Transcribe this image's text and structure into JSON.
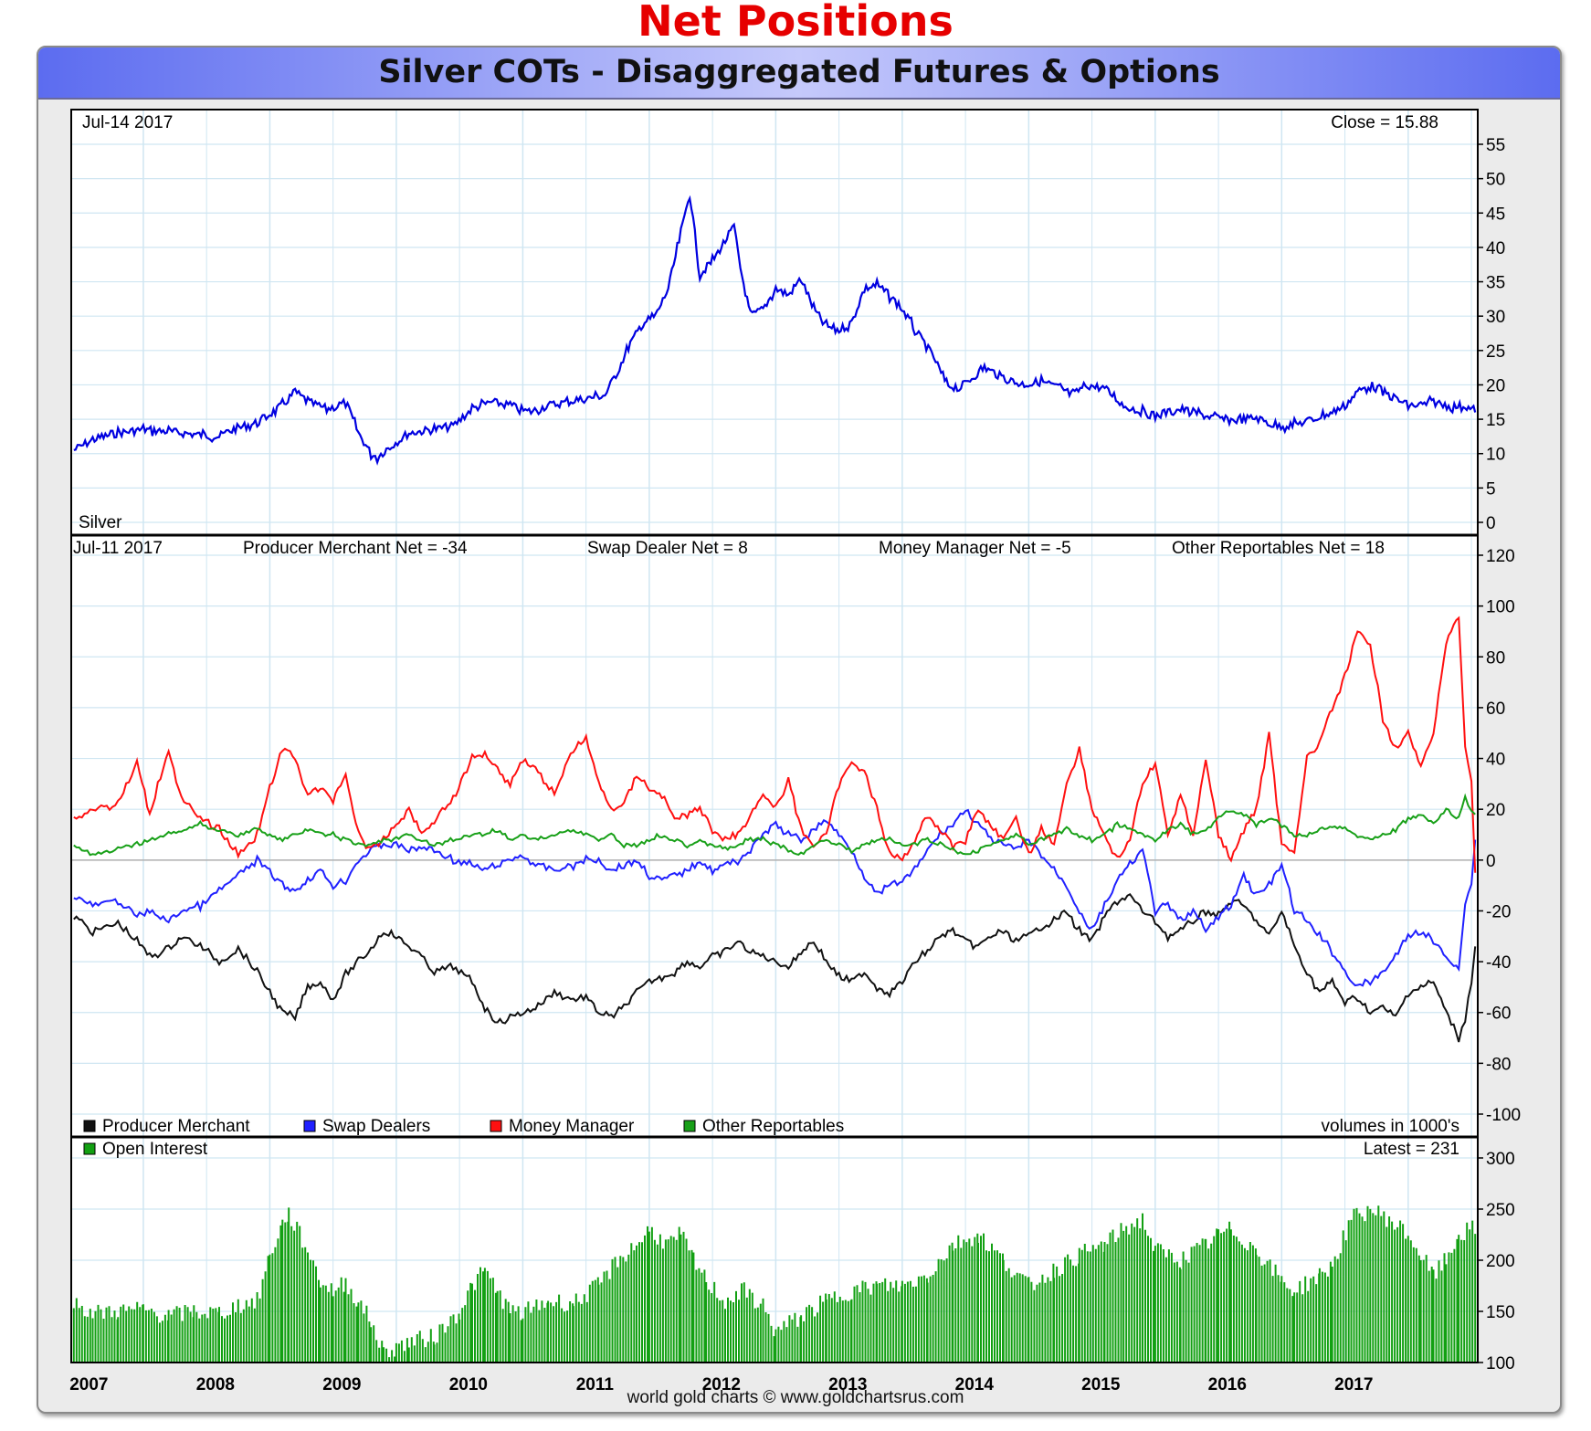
{
  "page_title": "Net Positions",
  "chart_title": "Silver COTs - Disaggregated Futures & Options",
  "footer": "world gold charts © www.goldchartsrus.com",
  "x_axis": {
    "years": [
      "2007",
      "2008",
      "2009",
      "2010",
      "2011",
      "2012",
      "2013",
      "2014",
      "2015",
      "2016",
      "2017"
    ],
    "range": [
      2006.43,
      2017.55
    ]
  },
  "colors": {
    "price": "#0000e0",
    "producer": "#111111",
    "swap": "#2020ff",
    "manager": "#ff1010",
    "other": "#18a018",
    "open_interest": "#12a012",
    "grid": "#cfe6f2"
  },
  "chart_data": [
    {
      "type": "line",
      "panel": "Silver price",
      "date_label": "Jul-14  2017",
      "close_label": "Close = 15.88",
      "series_label": "Silver",
      "y_ticks": [
        "55",
        "50",
        "45",
        "40",
        "35",
        "30",
        "25",
        "20",
        "15",
        "10",
        "5",
        "0"
      ],
      "ylim": [
        0,
        55
      ],
      "series": [
        {
          "name": "Silver",
          "x": [
            2006.45,
            2006.6,
            2006.8,
            2007.0,
            2007.2,
            2007.4,
            2007.6,
            2007.7,
            2007.9,
            2008.1,
            2008.2,
            2008.3,
            2008.45,
            2008.55,
            2008.6,
            2008.7,
            2008.8,
            2008.85,
            2008.95,
            2009.1,
            2009.3,
            2009.45,
            2009.6,
            2009.75,
            2009.9,
            2010.05,
            2010.2,
            2010.35,
            2010.5,
            2010.65,
            2010.75,
            2010.85,
            2010.95,
            2011.05,
            2011.15,
            2011.25,
            2011.32,
            2011.4,
            2011.5,
            2011.6,
            2011.67,
            2011.72,
            2011.8,
            2011.9,
            2012.0,
            2012.1,
            2012.2,
            2012.3,
            2012.4,
            2012.5,
            2012.6,
            2012.7,
            2012.8,
            2012.9,
            2013.0,
            2013.1,
            2013.25,
            2013.35,
            2013.45,
            2013.55,
            2013.65,
            2013.8,
            2013.95,
            2014.1,
            2014.25,
            2014.35,
            2014.45,
            2014.6,
            2014.75,
            2014.9,
            2015.0,
            2015.2,
            2015.4,
            2015.6,
            2015.8,
            2015.95,
            2016.1,
            2016.25,
            2016.4,
            2016.5,
            2016.6,
            2016.7,
            2016.8,
            2016.9,
            2017.0,
            2017.1,
            2017.2,
            2017.35,
            2017.45,
            2017.53
          ],
          "values": [
            10.5,
            12,
            13,
            13.5,
            13.2,
            12.8,
            12.5,
            13.5,
            14.5,
            17,
            19,
            17.5,
            16.5,
            17,
            17.5,
            13,
            10,
            9.5,
            11,
            13,
            13.5,
            14,
            16.5,
            17.5,
            17,
            16,
            17,
            17.5,
            18,
            18.5,
            22,
            26,
            29,
            30,
            34,
            42,
            48,
            36,
            38,
            41,
            43,
            37,
            30,
            31,
            34,
            33,
            35.5,
            31,
            28.5,
            28,
            29,
            34,
            34.5,
            33,
            31,
            28,
            24,
            20,
            19.5,
            21,
            22.5,
            21,
            20,
            20.5,
            19.5,
            18.5,
            20,
            19.5,
            17,
            16,
            15.5,
            16.5,
            15.5,
            14.8,
            15.2,
            14,
            14.2,
            15,
            16,
            17,
            19,
            20,
            19,
            18,
            17,
            17,
            17.5,
            16.8,
            17,
            16
          ]
        }
      ]
    },
    {
      "type": "line",
      "panel": "Net positions",
      "date_label": "Jul-11  2017",
      "annotations": [
        "Producer Merchant Net = -34",
        "Swap Dealer Net = 8",
        "Money Manager Net = -5",
        "Other Reportables Net = 18"
      ],
      "legend": [
        "Producer Merchant",
        "Swap Dealers",
        "Money Manager",
        "Other Reportables"
      ],
      "units_note": "volumes in 1000's",
      "y_ticks": [
        "120",
        "100",
        "80",
        "60",
        "40",
        "20",
        "0",
        "-20",
        "-40",
        "-60",
        "-80",
        "-100"
      ],
      "ylim": [
        -100,
        120
      ],
      "x": [
        2006.45,
        2006.6,
        2006.8,
        2006.95,
        2007.05,
        2007.2,
        2007.3,
        2007.45,
        2007.6,
        2007.75,
        2007.9,
        2008.0,
        2008.1,
        2008.2,
        2008.3,
        2008.4,
        2008.5,
        2008.6,
        2008.7,
        2008.8,
        2008.9,
        2009.0,
        2009.1,
        2009.2,
        2009.3,
        2009.45,
        2009.6,
        2009.7,
        2009.8,
        2009.9,
        2010.0,
        2010.1,
        2010.25,
        2010.4,
        2010.5,
        2010.6,
        2010.7,
        2010.8,
        2010.9,
        2011.0,
        2011.1,
        2011.2,
        2011.3,
        2011.4,
        2011.5,
        2011.6,
        2011.7,
        2011.8,
        2011.9,
        2012.0,
        2012.1,
        2012.2,
        2012.3,
        2012.4,
        2012.5,
        2012.6,
        2012.7,
        2012.8,
        2012.9,
        2013.0,
        2013.1,
        2013.2,
        2013.3,
        2013.4,
        2013.5,
        2013.6,
        2013.7,
        2013.8,
        2013.9,
        2014.0,
        2014.1,
        2014.2,
        2014.3,
        2014.4,
        2014.5,
        2014.6,
        2014.7,
        2014.8,
        2014.9,
        2015.0,
        2015.1,
        2015.2,
        2015.3,
        2015.4,
        2015.5,
        2015.6,
        2015.7,
        2015.8,
        2015.9,
        2016.0,
        2016.1,
        2016.2,
        2016.3,
        2016.4,
        2016.5,
        2016.6,
        2016.7,
        2016.8,
        2016.9,
        2017.0,
        2017.1,
        2017.2,
        2017.3,
        2017.4,
        2017.45,
        2017.5,
        2017.53
      ],
      "series": [
        {
          "name": "Producer Merchant",
          "values": [
            -22,
            -28,
            -25,
            -32,
            -38,
            -35,
            -30,
            -34,
            -40,
            -35,
            -44,
            -52,
            -60,
            -62,
            -50,
            -48,
            -55,
            -45,
            -40,
            -35,
            -28,
            -30,
            -34,
            -38,
            -44,
            -42,
            -48,
            -58,
            -64,
            -62,
            -60,
            -58,
            -52,
            -55,
            -54,
            -60,
            -62,
            -58,
            -52,
            -48,
            -46,
            -44,
            -40,
            -42,
            -38,
            -36,
            -32,
            -36,
            -38,
            -40,
            -42,
            -36,
            -32,
            -40,
            -46,
            -48,
            -44,
            -50,
            -52,
            -48,
            -40,
            -36,
            -30,
            -28,
            -32,
            -34,
            -30,
            -28,
            -32,
            -30,
            -26,
            -24,
            -20,
            -28,
            -32,
            -22,
            -16,
            -14,
            -20,
            -24,
            -30,
            -28,
            -24,
            -20,
            -22,
            -16,
            -18,
            -24,
            -30,
            -20,
            -34,
            -44,
            -52,
            -48,
            -56,
            -54,
            -60,
            -58,
            -62,
            -52,
            -50,
            -48,
            -60,
            -70,
            -62,
            -48,
            -34
          ]
        },
        {
          "name": "Swap Dealers",
          "values": [
            -14,
            -18,
            -16,
            -22,
            -20,
            -24,
            -20,
            -18,
            -12,
            -6,
            0,
            -5,
            -10,
            -12,
            -8,
            -4,
            -10,
            -8,
            0,
            4,
            6,
            6,
            4,
            5,
            4,
            0,
            -2,
            -4,
            -2,
            0,
            2,
            -2,
            -4,
            -2,
            0,
            0,
            -4,
            -2,
            0,
            -6,
            -8,
            -6,
            -4,
            0,
            -4,
            -2,
            0,
            4,
            10,
            14,
            10,
            8,
            12,
            16,
            10,
            4,
            -6,
            -14,
            -10,
            -8,
            -4,
            4,
            10,
            14,
            20,
            14,
            8,
            6,
            4,
            8,
            2,
            -4,
            -10,
            -20,
            -28,
            -18,
            -8,
            -2,
            4,
            -20,
            -18,
            -24,
            -20,
            -28,
            -22,
            -18,
            -6,
            -14,
            -10,
            -2,
            -20,
            -24,
            -30,
            -36,
            -44,
            -50,
            -48,
            -44,
            -38,
            -30,
            -28,
            -32,
            -38,
            -42,
            -18,
            -8,
            8
          ]
        },
        {
          "name": "Money Manager",
          "values": [
            16,
            20,
            22,
            38,
            18,
            44,
            24,
            16,
            12,
            2,
            10,
            28,
            44,
            40,
            26,
            28,
            24,
            34,
            10,
            4,
            8,
            14,
            20,
            10,
            16,
            24,
            40,
            42,
            36,
            30,
            40,
            36,
            26,
            44,
            48,
            30,
            20,
            22,
            34,
            28,
            26,
            16,
            18,
            20,
            12,
            8,
            10,
            18,
            26,
            20,
            32,
            12,
            6,
            10,
            30,
            38,
            36,
            20,
            2,
            0,
            8,
            18,
            12,
            6,
            8,
            20,
            14,
            8,
            16,
            2,
            12,
            6,
            30,
            44,
            20,
            10,
            0,
            8,
            30,
            38,
            10,
            26,
            10,
            40,
            10,
            0,
            12,
            20,
            50,
            6,
            4,
            40,
            46,
            60,
            72,
            90,
            84,
            56,
            44,
            50,
            36,
            50,
            86,
            96,
            46,
            30,
            -5
          ]
        },
        {
          "name": "Other Reportables",
          "values": [
            6,
            2,
            4,
            6,
            8,
            10,
            12,
            14,
            12,
            10,
            12,
            10,
            8,
            10,
            12,
            10,
            10,
            8,
            6,
            6,
            8,
            8,
            10,
            8,
            6,
            8,
            10,
            10,
            12,
            8,
            10,
            8,
            10,
            12,
            10,
            8,
            10,
            6,
            6,
            8,
            10,
            8,
            6,
            8,
            6,
            4,
            6,
            8,
            8,
            6,
            4,
            2,
            6,
            8,
            6,
            4,
            6,
            8,
            8,
            6,
            6,
            8,
            6,
            4,
            2,
            4,
            6,
            8,
            10,
            6,
            8,
            10,
            12,
            10,
            8,
            10,
            14,
            12,
            10,
            8,
            12,
            14,
            10,
            12,
            16,
            20,
            18,
            14,
            16,
            14,
            10,
            10,
            12,
            14,
            12,
            10,
            8,
            10,
            12,
            16,
            18,
            14,
            20,
            16,
            24,
            20,
            18
          ]
        }
      ]
    },
    {
      "type": "bar",
      "panel": "Open interest",
      "legend": [
        "Open Interest"
      ],
      "latest_label": "Latest = 231",
      "y_ticks": [
        "300",
        "250",
        "200",
        "150",
        "100"
      ],
      "ylim": [
        100,
        300
      ],
      "series": [
        {
          "name": "Open Interest",
          "x": [
            2006.45,
            2006.6,
            2006.8,
            2007.0,
            2007.2,
            2007.4,
            2007.6,
            2007.75,
            2007.9,
            2008.0,
            2008.1,
            2008.15,
            2008.3,
            2008.4,
            2008.5,
            2008.6,
            2008.7,
            2008.8,
            2008.9,
            2009.0,
            2009.1,
            2009.3,
            2009.5,
            2009.6,
            2009.7,
            2009.8,
            2009.9,
            2010.0,
            2010.2,
            2010.4,
            2010.6,
            2010.75,
            2010.9,
            2011.0,
            2011.15,
            2011.25,
            2011.35,
            2011.45,
            2011.6,
            2011.75,
            2011.9,
            2012.0,
            2012.2,
            2012.4,
            2012.6,
            2012.8,
            2013.0,
            2013.2,
            2013.4,
            2013.6,
            2013.8,
            2014.0,
            2014.2,
            2014.4,
            2014.6,
            2014.75,
            2014.9,
            2015.0,
            2015.2,
            2015.4,
            2015.5,
            2015.6,
            2015.8,
            2016.0,
            2016.1,
            2016.3,
            2016.4,
            2016.55,
            2016.7,
            2016.85,
            2017.0,
            2017.1,
            2017.2,
            2017.3,
            2017.4,
            2017.53
          ],
          "values": [
            160,
            148,
            150,
            152,
            145,
            150,
            148,
            156,
            160,
            205,
            235,
            245,
            210,
            180,
            170,
            178,
            160,
            140,
            110,
            115,
            120,
            125,
            150,
            175,
            190,
            170,
            150,
            148,
            160,
            158,
            175,
            200,
            215,
            230,
            215,
            225,
            200,
            180,
            160,
            170,
            155,
            130,
            145,
            160,
            170,
            175,
            175,
            185,
            215,
            225,
            200,
            175,
            190,
            205,
            215,
            230,
            240,
            210,
            200,
            215,
            225,
            230,
            210,
            180,
            170,
            185,
            195,
            240,
            250,
            240,
            225,
            205,
            185,
            200,
            225,
            231
          ]
        }
      ]
    }
  ]
}
